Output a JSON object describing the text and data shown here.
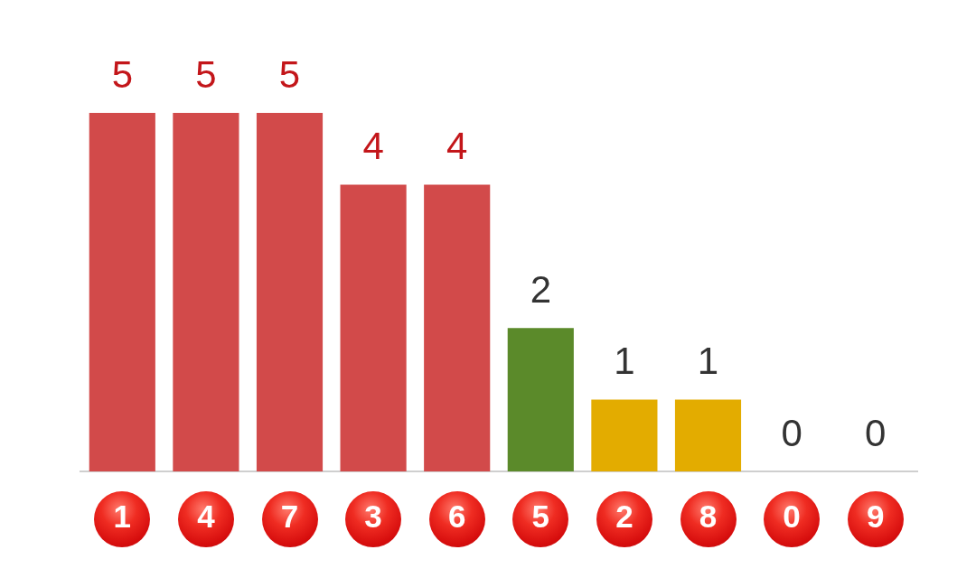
{
  "chart_data": {
    "type": "bar",
    "categories": [
      "1",
      "4",
      "7",
      "3",
      "6",
      "5",
      "2",
      "8",
      "0",
      "9"
    ],
    "values": [
      5,
      5,
      5,
      4,
      4,
      2,
      1,
      1,
      0,
      0
    ],
    "colors": [
      "#d24a4a",
      "#d24a4a",
      "#d24a4a",
      "#d24a4a",
      "#d24a4a",
      "#5b8a2a",
      "#e3ac00",
      "#e3ac00",
      "#e3ac00",
      "#e3ac00"
    ],
    "data_labels": true
  }
}
